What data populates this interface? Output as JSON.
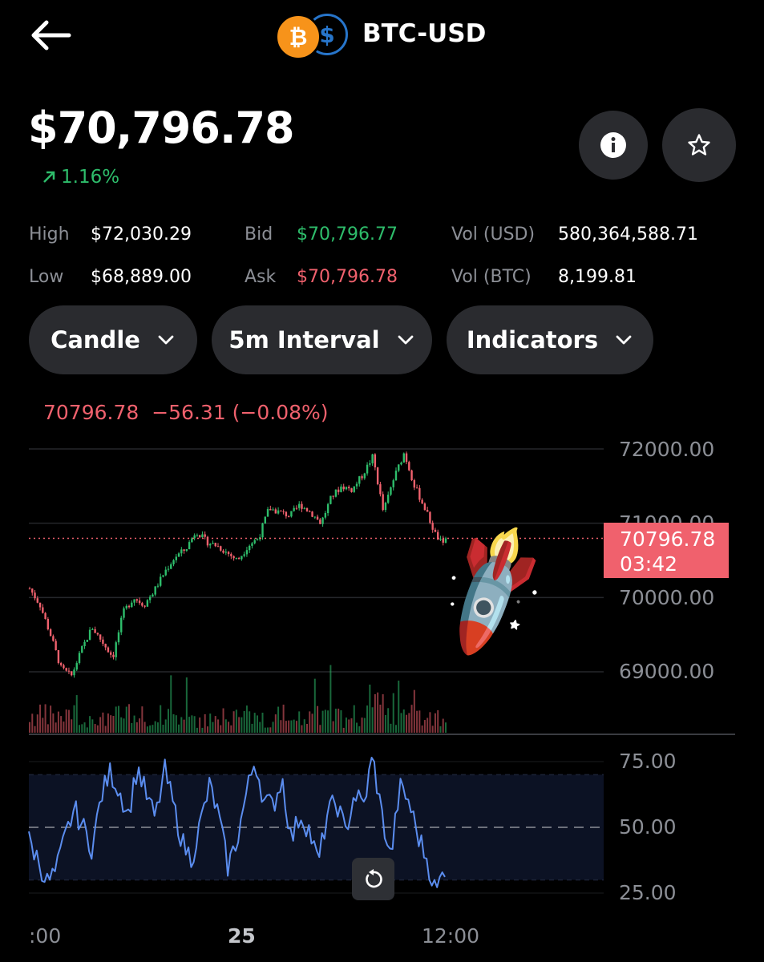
{
  "header": {
    "back_icon": "arrow-left-icon",
    "pair": "BTC-USD",
    "base_icon": "bitcoin-icon",
    "quote_icon": "usd-coin-icon",
    "base_symbol": "₿",
    "quote_symbol": "$"
  },
  "price": {
    "value": "$70,796.78",
    "change": "1.16%",
    "change_icon": "arrow-up-right-icon",
    "change_color": "#2ebd6b"
  },
  "actions": {
    "info_icon": "info-icon",
    "favorite_icon": "star-icon"
  },
  "stats": {
    "high_label": "High",
    "high_value": "$72,030.29",
    "low_label": "Low",
    "low_value": "$68,889.00",
    "bid_label": "Bid",
    "bid_value": "$70,796.77",
    "ask_label": "Ask",
    "ask_value": "$70,796.78",
    "vol_usd_label": "Vol (USD)",
    "vol_usd_value": "580,364,588.71",
    "vol_btc_label": "Vol (BTC)",
    "vol_btc_value": "8,199.81"
  },
  "controls": {
    "chart_type": "Candle",
    "interval": "5m Interval",
    "indicators": "Indicators",
    "chevron_icon": "chevron-down-icon"
  },
  "ohlc_header": {
    "close": "70796.78",
    "change": "−56.31 (−0.08%)"
  },
  "price_tag": {
    "value": "70796.78",
    "countdown": "03:42"
  },
  "overlay": {
    "emoji": "🚀",
    "name": "rocket-icon"
  },
  "reset_icon": "reset-zoom-icon",
  "colors": {
    "up": "#2ebd6b",
    "down": "#f0616d",
    "rsi_line": "#5b8def",
    "background": "#000000",
    "button_bg": "#2a2b2f"
  },
  "chart_data": [
    {
      "type": "candlestick",
      "title": "",
      "y_ticks": [
        "72000.00",
        "71000.00",
        "70000.00",
        "69000.00"
      ],
      "ylim": [
        68850,
        72100
      ],
      "x_ticks": [
        ":00",
        "25",
        "12:00"
      ],
      "current_price": 70796.78,
      "close_path": [
        70120,
        69900,
        69500,
        69050,
        68940,
        69300,
        69600,
        69400,
        69200,
        69800,
        70000,
        69900,
        70100,
        70350,
        70550,
        70650,
        70900,
        70750,
        70700,
        70600,
        70500,
        70700,
        70800,
        71200,
        71150,
        71100,
        71250,
        71150,
        71000,
        71350,
        71500,
        71450,
        71650,
        71900,
        71150,
        71600,
        71950,
        71500,
        71200,
        70850,
        70650
      ]
    },
    {
      "type": "line",
      "title": "",
      "y_ticks": [
        "75.00",
        "50.00",
        "25.00"
      ],
      "ylim": [
        22,
        78
      ],
      "overbought": 70,
      "oversold": 30,
      "midline": 50,
      "values": [
        45,
        38,
        29,
        33,
        46,
        57,
        50,
        42,
        62,
        71,
        64,
        55,
        73,
        62,
        53,
        72,
        58,
        44,
        38,
        52,
        66,
        54,
        35,
        45,
        62,
        76,
        60,
        58,
        69,
        45,
        55,
        49,
        36,
        55,
        60,
        48,
        63,
        58,
        77,
        55,
        38,
        65,
        60,
        47,
        38,
        25,
        35
      ]
    }
  ]
}
